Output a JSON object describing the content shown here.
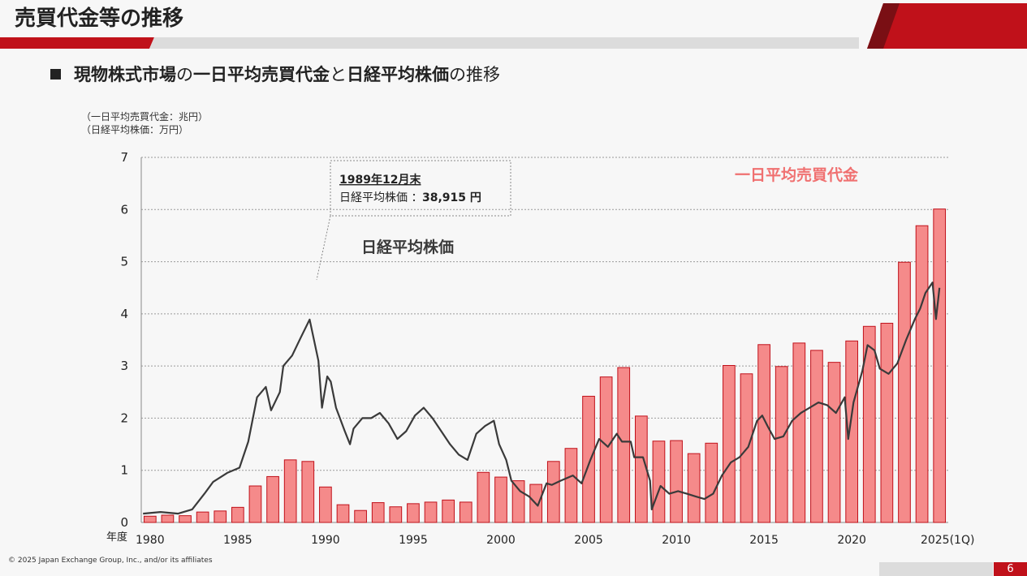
{
  "page": {
    "title": "売買代金等の推移",
    "subtitle": {
      "part1": "現物株式市場",
      "part2": "の",
      "part3": "一日平均売買代金",
      "part4": "と",
      "part5": "日経平均株価",
      "part6": "の推移"
    },
    "unit_note_1": "（一日平均売買代金：兆円）",
    "unit_note_2": "（日経平均株価：万円）",
    "copyright": "© 2025 Japan Exchange Group, Inc., and/or its affiliates",
    "page_number": "6"
  },
  "colors": {
    "accent_red": "#c0111a",
    "bar_fill": "#f58a8a",
    "bar_stroke": "#c0111a",
    "line": "#3a3a3a",
    "label_red": "#f07070"
  },
  "chart_data": {
    "type": "bar",
    "xlabel": "年度",
    "ylim": [
      0,
      7
    ],
    "yticks": [
      "0",
      "1",
      "2",
      "3",
      "4",
      "5",
      "6",
      "7"
    ],
    "xtick_labels": [
      "1980",
      "1985",
      "1990",
      "1995",
      "2000",
      "2005",
      "2010",
      "2015",
      "2020",
      "2025(1Q)"
    ],
    "grid": true,
    "annotation": {
      "title": "1989年12月末",
      "label": "日経平均株価 ：",
      "value": "38,915 円"
    },
    "series_labels": {
      "bars": "一日平均売買代金",
      "line": "日経平均株価"
    },
    "categories": [
      "1980",
      "1981",
      "1982",
      "1983",
      "1984",
      "1985",
      "1986",
      "1987",
      "1988",
      "1989",
      "1990",
      "1991",
      "1992",
      "1993",
      "1994",
      "1995",
      "1996",
      "1997",
      "1998",
      "1999",
      "2000",
      "2001",
      "2002",
      "2003",
      "2004",
      "2005",
      "2006",
      "2007",
      "2008",
      "2009",
      "2010",
      "2011",
      "2012",
      "2013",
      "2014",
      "2015",
      "2016",
      "2017",
      "2018",
      "2019",
      "2020",
      "2021",
      "2022",
      "2023",
      "2024",
      "2025(1Q)"
    ],
    "series": [
      {
        "name": "一日平均売買代金",
        "values": [
          0.12,
          0.14,
          0.13,
          0.2,
          0.22,
          0.29,
          0.7,
          0.88,
          1.2,
          1.17,
          0.68,
          0.34,
          0.23,
          0.38,
          0.3,
          0.36,
          0.39,
          0.43,
          0.39,
          0.96,
          0.87,
          0.8,
          0.73,
          1.17,
          1.42,
          2.42,
          2.79,
          2.97,
          2.04,
          1.56,
          1.57,
          1.32,
          1.52,
          3.01,
          2.85,
          3.41,
          2.99,
          3.44,
          3.3,
          3.07,
          3.48,
          3.76,
          3.82,
          4.99,
          5.69,
          6.01
        ]
      },
      {
        "name": "日経平均株価",
        "x": [
          1980,
          1981,
          1982,
          1982.8,
          1983.5,
          1984,
          1984.8,
          1985.5,
          1986,
          1986.5,
          1987,
          1987.3,
          1987.8,
          1988,
          1988.5,
          1989,
          1989.5,
          1990,
          1990.2,
          1990.5,
          1990.7,
          1991,
          1991.5,
          1991.8,
          1992,
          1992.5,
          1993,
          1993.5,
          1994,
          1994.5,
          1995,
          1995.5,
          1996,
          1996.5,
          1997,
          1997.5,
          1998,
          1998.5,
          1999,
          1999.5,
          2000,
          2000.3,
          2000.7,
          2001,
          2001.5,
          2002,
          2002.5,
          2003,
          2003.3,
          2003.8,
          2004.5,
          2005,
          2005.5,
          2006,
          2006.5,
          2007,
          2007.3,
          2007.8,
          2008,
          2008.5,
          2008.9,
          2009,
          2009.5,
          2010,
          2010.5,
          2011,
          2011.5,
          2012,
          2012.5,
          2013,
          2013.5,
          2014,
          2014.5,
          2015,
          2015.3,
          2015.6,
          2016,
          2016.5,
          2017,
          2017.5,
          2018,
          2018.5,
          2019,
          2019.5,
          2020,
          2020.2,
          2020.5,
          2021,
          2021.3,
          2021.7,
          2022,
          2022.5,
          2023,
          2023.5,
          2024,
          2024.3,
          2024.6,
          2025,
          2025.2,
          2025.4
        ],
        "values": [
          0.17,
          0.2,
          0.17,
          0.25,
          0.55,
          0.78,
          0.95,
          1.05,
          1.55,
          2.4,
          2.6,
          2.15,
          2.5,
          3.0,
          3.2,
          3.55,
          3.89,
          3.1,
          2.2,
          2.8,
          2.7,
          2.2,
          1.75,
          1.5,
          1.8,
          2.0,
          2.0,
          2.1,
          1.9,
          1.6,
          1.75,
          2.05,
          2.2,
          2.0,
          1.75,
          1.5,
          1.3,
          1.2,
          1.7,
          1.85,
          1.95,
          1.5,
          1.2,
          0.8,
          0.6,
          0.5,
          0.32,
          0.75,
          0.72,
          0.8,
          0.9,
          0.75,
          1.2,
          1.6,
          1.45,
          1.7,
          1.55,
          1.55,
          1.25,
          1.25,
          0.8,
          0.25,
          0.7,
          0.55,
          0.6,
          0.55,
          0.5,
          0.45,
          0.55,
          0.9,
          1.15,
          1.25,
          1.45,
          1.95,
          2.05,
          1.85,
          1.6,
          1.65,
          1.95,
          2.1,
          2.2,
          2.3,
          2.25,
          2.1,
          2.4,
          1.6,
          2.3,
          2.9,
          3.4,
          3.3,
          2.95,
          2.85,
          3.05,
          3.5,
          3.9,
          4.1,
          4.4,
          4.6,
          3.9,
          4.5
        ]
      }
    ]
  }
}
